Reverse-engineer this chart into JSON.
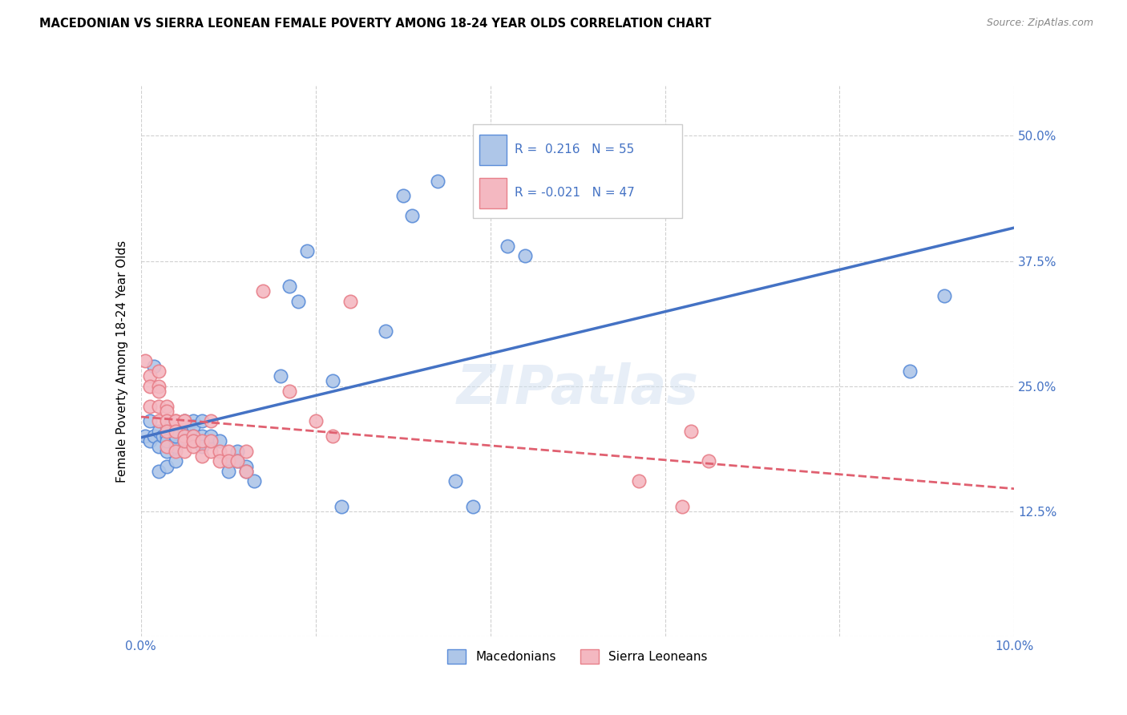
{
  "title": "MACEDONIAN VS SIERRA LEONEAN FEMALE POVERTY AMONG 18-24 YEAR OLDS CORRELATION CHART",
  "source": "Source: ZipAtlas.com",
  "ylabel": "Female Poverty Among 18-24 Year Olds",
  "xlim": [
    0.0,
    0.1
  ],
  "ylim": [
    0.0,
    0.55
  ],
  "x_ticks": [
    0.0,
    0.02,
    0.04,
    0.06,
    0.08,
    0.1
  ],
  "x_tick_labels": [
    "0.0%",
    "",
    "",
    "",
    "",
    "10.0%"
  ],
  "y_ticks": [
    0.0,
    0.125,
    0.25,
    0.375,
    0.5
  ],
  "y_tick_labels": [
    "",
    "12.5%",
    "25.0%",
    "37.5%",
    "50.0%"
  ],
  "macedonian_color": "#aec6e8",
  "sierra_leonean_color": "#f4b8c1",
  "macedonian_edge_color": "#5b8dd9",
  "sierra_leonean_edge_color": "#e8808a",
  "macedonian_line_color": "#4472c4",
  "sierra_leonean_line_color": "#e06070",
  "R_macedonian": 0.216,
  "N_macedonian": 55,
  "R_sierra": -0.021,
  "N_sierra": 47,
  "grid_color": "#d0d0d0",
  "background_color": "#ffffff",
  "tick_color": "#4472c4",
  "macedonians_x": [
    0.0005,
    0.001,
    0.0015,
    0.001,
    0.0015,
    0.002,
    0.002,
    0.0025,
    0.002,
    0.003,
    0.003,
    0.003,
    0.003,
    0.003,
    0.004,
    0.004,
    0.004,
    0.004,
    0.004,
    0.005,
    0.005,
    0.005,
    0.005,
    0.006,
    0.006,
    0.006,
    0.007,
    0.007,
    0.007,
    0.008,
    0.008,
    0.009,
    0.01,
    0.01,
    0.011,
    0.011,
    0.012,
    0.012,
    0.013,
    0.016,
    0.017,
    0.018,
    0.019,
    0.022,
    0.023,
    0.028,
    0.03,
    0.031,
    0.034,
    0.036,
    0.038,
    0.042,
    0.044,
    0.088,
    0.092
  ],
  "macedonians_y": [
    0.2,
    0.215,
    0.27,
    0.195,
    0.2,
    0.19,
    0.205,
    0.2,
    0.165,
    0.21,
    0.185,
    0.2,
    0.17,
    0.195,
    0.195,
    0.2,
    0.19,
    0.175,
    0.2,
    0.205,
    0.215,
    0.2,
    0.195,
    0.215,
    0.21,
    0.2,
    0.215,
    0.2,
    0.19,
    0.195,
    0.2,
    0.195,
    0.175,
    0.165,
    0.185,
    0.175,
    0.17,
    0.165,
    0.155,
    0.26,
    0.35,
    0.335,
    0.385,
    0.255,
    0.13,
    0.305,
    0.44,
    0.42,
    0.455,
    0.155,
    0.13,
    0.39,
    0.38,
    0.265,
    0.34
  ],
  "sierra_x": [
    0.0005,
    0.001,
    0.001,
    0.001,
    0.002,
    0.002,
    0.002,
    0.002,
    0.002,
    0.003,
    0.003,
    0.003,
    0.003,
    0.003,
    0.004,
    0.004,
    0.004,
    0.004,
    0.005,
    0.005,
    0.005,
    0.005,
    0.005,
    0.006,
    0.006,
    0.006,
    0.007,
    0.007,
    0.008,
    0.008,
    0.008,
    0.009,
    0.009,
    0.01,
    0.01,
    0.011,
    0.012,
    0.012,
    0.014,
    0.017,
    0.02,
    0.022,
    0.024,
    0.057,
    0.062,
    0.063,
    0.065
  ],
  "sierra_y": [
    0.275,
    0.26,
    0.25,
    0.23,
    0.265,
    0.25,
    0.23,
    0.245,
    0.215,
    0.23,
    0.225,
    0.215,
    0.205,
    0.19,
    0.215,
    0.215,
    0.205,
    0.185,
    0.215,
    0.215,
    0.2,
    0.185,
    0.195,
    0.2,
    0.19,
    0.195,
    0.195,
    0.18,
    0.185,
    0.215,
    0.195,
    0.185,
    0.175,
    0.185,
    0.175,
    0.175,
    0.185,
    0.165,
    0.345,
    0.245,
    0.215,
    0.2,
    0.335,
    0.155,
    0.13,
    0.205,
    0.175
  ]
}
